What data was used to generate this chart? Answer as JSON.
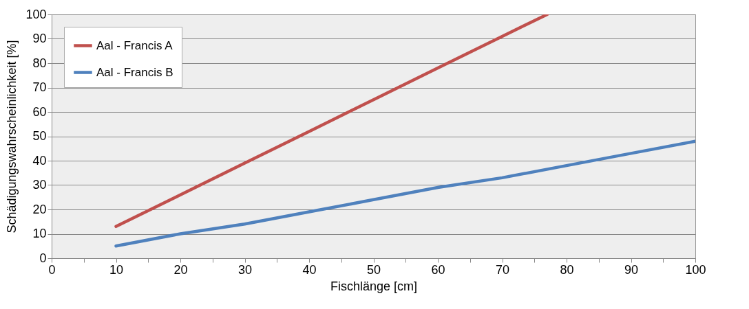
{
  "chart_data": {
    "type": "line",
    "xlabel": "Fischlänge [cm]",
    "ylabel": "Schädigungswahrscheinlichkeit [%]",
    "xlim": [
      0,
      100
    ],
    "ylim": [
      0,
      100
    ],
    "xticks": [
      0,
      {
        "value": 5,
        "label": null
      },
      10,
      {
        "value": 15,
        "label": null
      },
      20,
      {
        "value": 25,
        "label": null
      },
      30,
      {
        "value": 35,
        "label": null
      },
      40,
      {
        "value": 45,
        "label": null
      },
      50,
      {
        "value": 55,
        "label": null
      },
      60,
      {
        "value": 65,
        "label": null
      },
      70,
      {
        "value": 75,
        "label": null
      },
      80,
      {
        "value": 85,
        "label": null
      },
      90,
      {
        "value": 95,
        "label": null
      },
      100
    ],
    "yticks": [
      0,
      10,
      20,
      30,
      40,
      50,
      60,
      70,
      80,
      90,
      100
    ],
    "grid": "y",
    "legend": "top left",
    "line_style": "solid",
    "marker": "none",
    "series": [
      {
        "name": "Aal - Francis A",
        "color": "#c0504d",
        "x": [
          10,
          20,
          30,
          40,
          50,
          60,
          70,
          77
        ],
        "values": [
          13,
          26,
          39,
          52,
          65,
          78,
          91,
          100
        ]
      },
      {
        "name": "Aal - Francis B",
        "color": "#4f81bd",
        "x": [
          10,
          20,
          30,
          40,
          50,
          60,
          70,
          80,
          90,
          100
        ],
        "values": [
          5,
          10,
          14,
          19,
          24,
          29,
          33,
          38,
          43,
          48
        ]
      }
    ]
  }
}
